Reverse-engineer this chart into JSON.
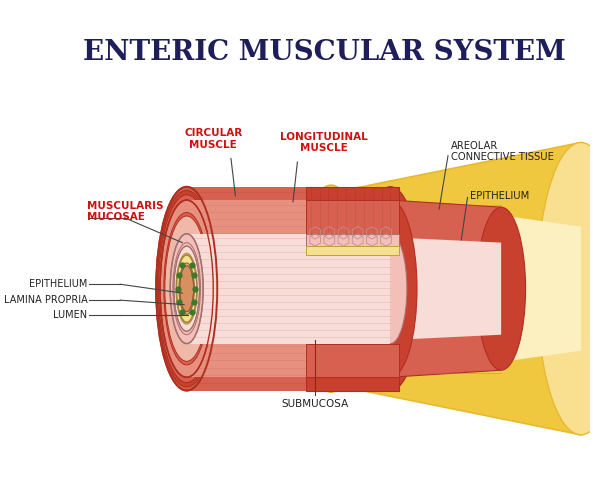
{
  "title": "ENTERIC MUSCULAR SYSTEM",
  "title_fontsize": 20,
  "title_color": "#1e1e5a",
  "title_weight": "bold",
  "bg_color": "#ffffff",
  "labels": {
    "circular_muscle": "CIRCULAR\nMUSCLE",
    "longitudinal_muscle": "LONGITUDINAL\nMUSCLE",
    "areolar_connective": "AREOLAR\nCONNECTIVE TISSUE",
    "epithelium_right": "EPITHELIUM",
    "muscularis_mucosae": "MUSCULARIS\nMUCOSAE",
    "epithelium_left": "EPITHELIUM",
    "lamina_propria": "LAMINA PROPRIA",
    "lumen": "LUMEN",
    "submucosa": "SUBMUCOSA"
  },
  "label_color_red": "#cc1111",
  "label_color_dark": "#222222",
  "colors": {
    "outer_yellow_dark": "#e8b830",
    "outer_yellow": "#f0c840",
    "outer_yellow_light": "#f8e090",
    "outer_yellow_pale": "#fdf0c0",
    "muscle_darkest": "#b03020",
    "muscle_dark": "#c8402e",
    "muscle_mid": "#d86050",
    "muscle_light": "#e89080",
    "muscle_pale": "#f0b8a8",
    "submucosa_pink": "#f2c0b8",
    "submucosa_light": "#f8dcd8",
    "inner_yellow": "#f5e090",
    "inner_yellow_dark": "#e8c860",
    "lumen_peach": "#e8b888",
    "lumen_inner": "#d4906070",
    "green_dot": "#3a7a2a",
    "line_dark": "#444444",
    "outline": "#666666"
  }
}
